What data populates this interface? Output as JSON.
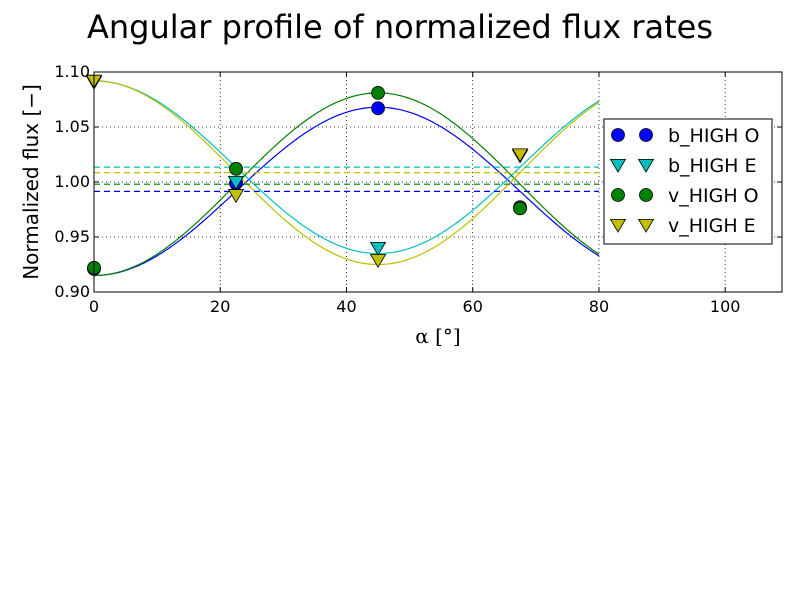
{
  "chart_data": {
    "type": "scatter",
    "title": "Angular profile of normalized flux rates",
    "xlabel": "α [°]",
    "ylabel": "Normalized flux  [−]",
    "xlim": [
      0,
      109
    ],
    "ylim": [
      0.9,
      1.1
    ],
    "x_ticks": [
      0,
      20,
      40,
      60,
      80,
      100
    ],
    "y_ticks": [
      0.9,
      0.95,
      1.0,
      1.05,
      1.1
    ],
    "x_tick_labels": [
      "0",
      "20",
      "40",
      "60",
      "80",
      "100"
    ],
    "y_tick_labels": [
      "0.90",
      "0.95",
      "1.00",
      "1.05",
      "1.10"
    ],
    "grid": true,
    "legend_position": "right",
    "series": [
      {
        "name": "b_HIGH O",
        "marker": "circle",
        "color": "#0000ff",
        "x": [
          0,
          22.5,
          45,
          67.5
        ],
        "y": [
          0.921,
          0.999,
          1.067,
          0.977
        ],
        "fit": {
          "mean": 0.9915,
          "amplitude": -0.0765,
          "x_max": 80
        },
        "mean_line": 0.9915
      },
      {
        "name": "b_HIGH E",
        "marker": "triangle-down",
        "color": "#00bfbf",
        "x": [
          0,
          22.5,
          45,
          67.5
        ],
        "y": [
          1.091,
          1.0,
          0.94,
          1.024
        ],
        "fit": {
          "mean": 1.0135,
          "amplitude": 0.0785,
          "x_max": 80
        },
        "mean_line": 1.0135
      },
      {
        "name": "v_HIGH O",
        "marker": "circle",
        "color": "#008000",
        "x": [
          0,
          22.5,
          45,
          67.5
        ],
        "y": [
          0.922,
          1.012,
          1.081,
          0.976
        ],
        "fit": {
          "mean": 0.998,
          "amplitude": -0.083,
          "x_max": 80
        },
        "mean_line": 0.998
      },
      {
        "name": "v_HIGH E",
        "marker": "triangle-down",
        "color": "#bfbf00",
        "x": [
          0,
          22.5,
          45,
          67.5
        ],
        "y": [
          1.092,
          0.988,
          0.929,
          1.025
        ],
        "fit": {
          "mean": 1.0085,
          "amplitude": 0.0835,
          "x_max": 80
        },
        "mean_line": 1.0085
      }
    ]
  }
}
